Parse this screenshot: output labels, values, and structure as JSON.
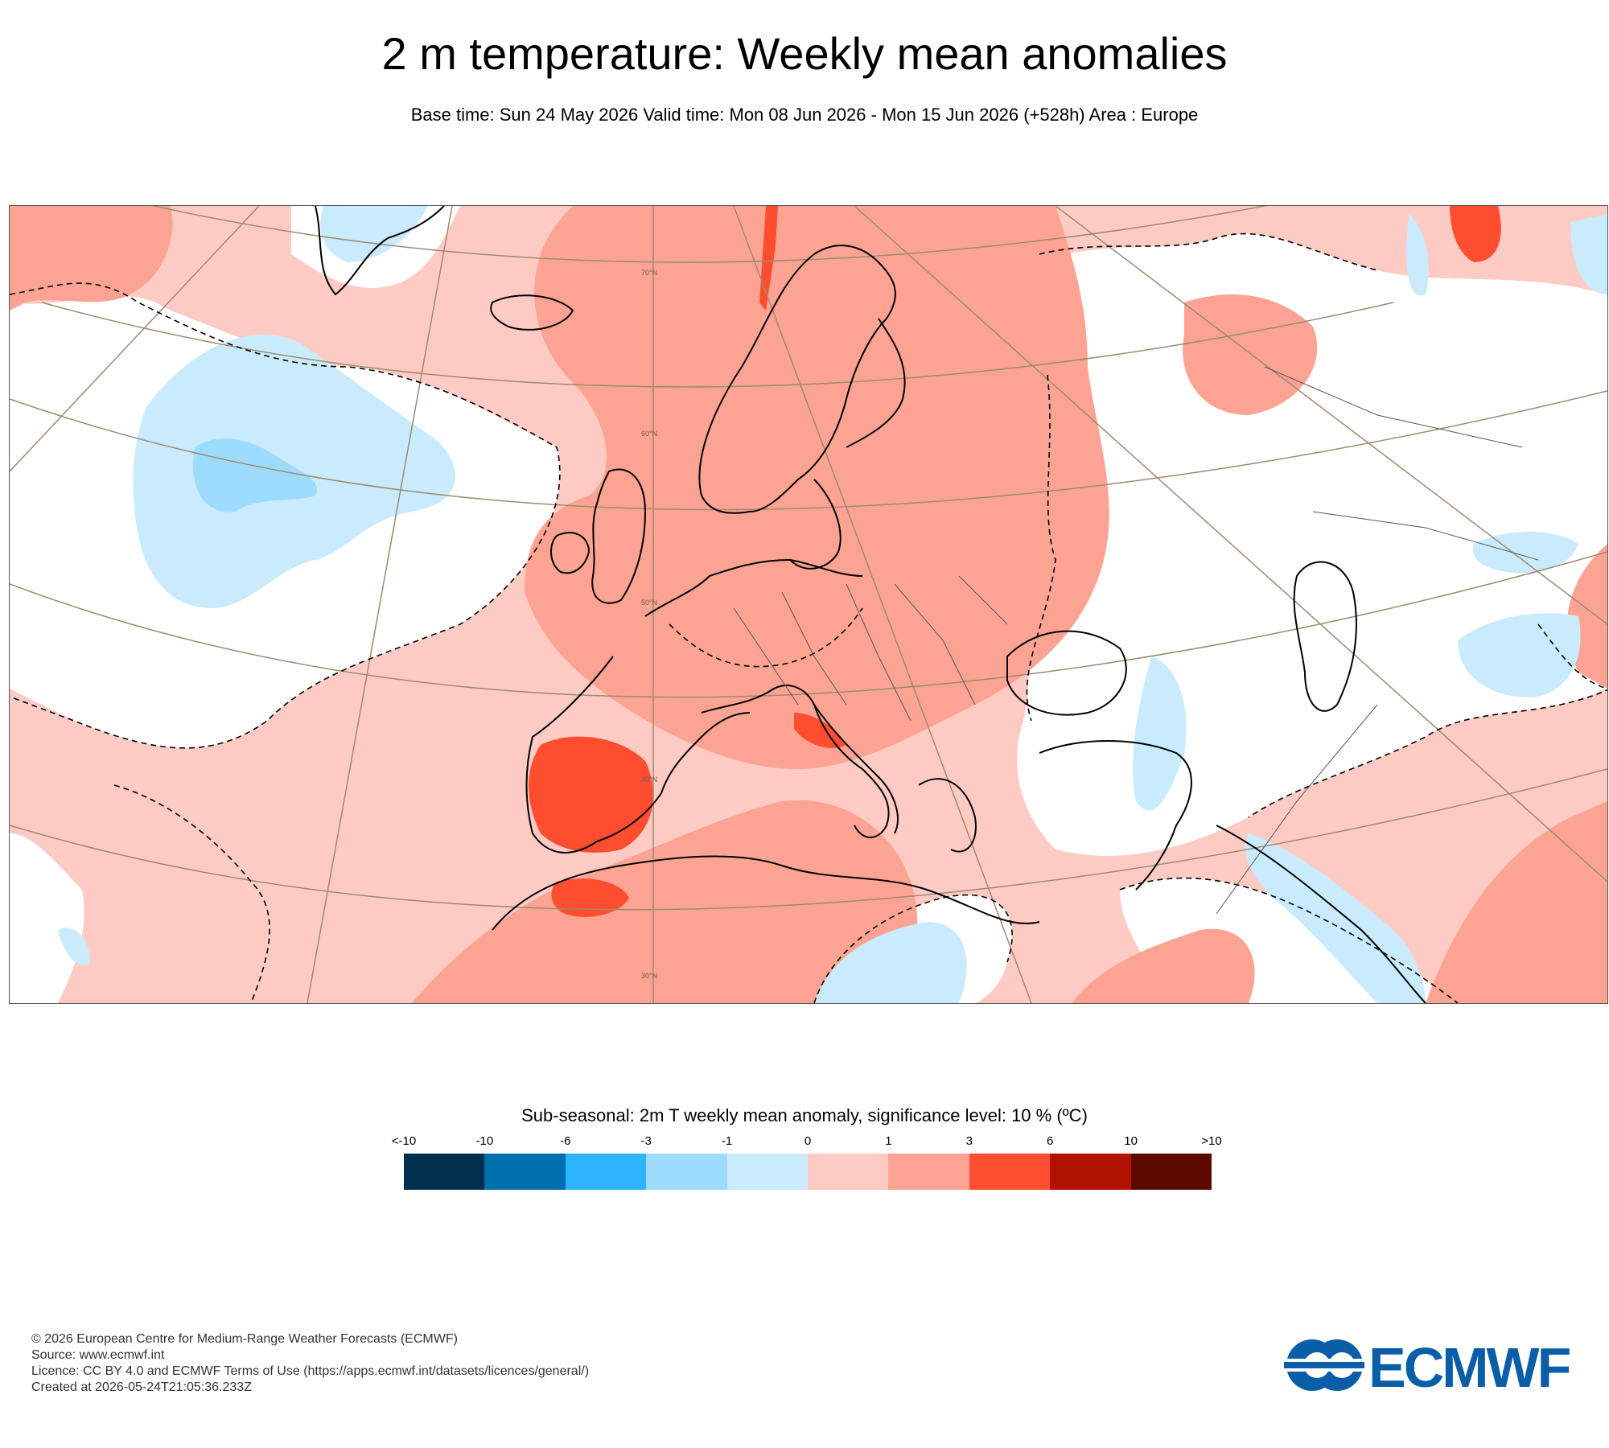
{
  "header": {
    "title": "2 m temperature: Weekly mean anomalies",
    "subtitle": "Base time: Sun 24 May 2026 Valid time: Mon 08 Jun 2026 - Mon 15 Jun 2026 (+528h) Area : Europe"
  },
  "map": {
    "latitude_labels": [
      "70°N",
      "60°N",
      "50°N",
      "40°N",
      "30°N"
    ],
    "colors": {
      "land_line": "#000000",
      "grid_line": "#9c8a70",
      "border_line": "#555555"
    }
  },
  "legend": {
    "title": "Sub-seasonal: 2m T weekly mean anomaly, significance level: 10 % (ºC)",
    "ticks": [
      "<-10",
      "-10",
      "-6",
      "-3",
      "-1",
      "0",
      "1",
      "3",
      "6",
      "10",
      ">10"
    ],
    "colors": [
      "#00304e",
      "#0070ad",
      "#2db3ff",
      "#9edcff",
      "#caebfd",
      "#fecbc4",
      "#fda394",
      "#ff4d30",
      "#b21200",
      "#5c0a00"
    ]
  },
  "footer": {
    "copyright": "© 2026 European Centre for Medium-Range Weather Forecasts (ECMWF)",
    "source": "Source: www.ecmwf.int",
    "licence": "Licence: CC BY 4.0 and ECMWF Terms of Use (https://apps.ecmwf.int/datasets/licences/general/)",
    "created": "Created at 2026-05-24T21:05:36.233Z"
  },
  "logo": {
    "text": "ECMWF",
    "color": "#0a5ea8"
  }
}
